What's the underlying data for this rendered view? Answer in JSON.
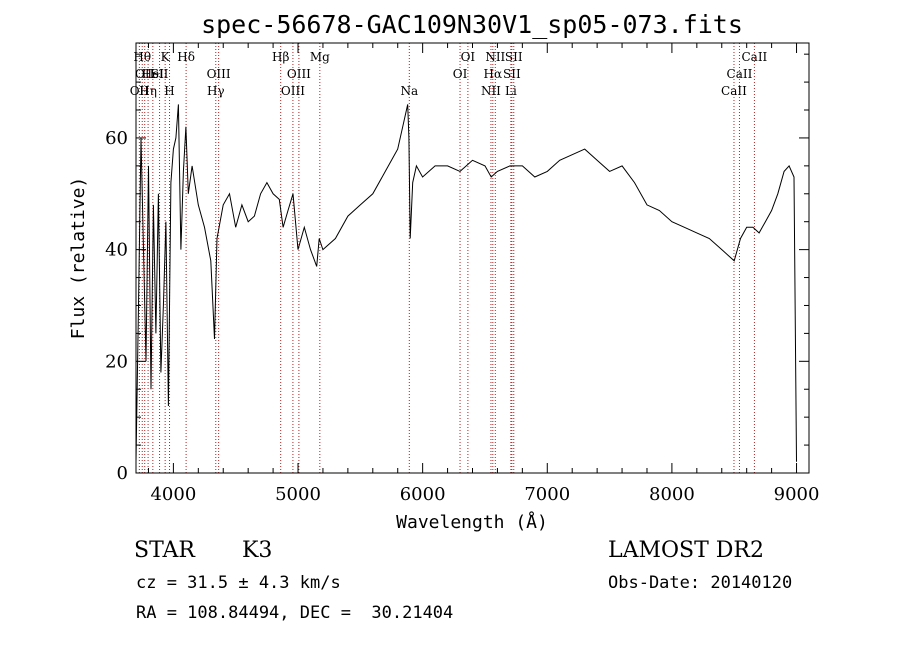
{
  "chart_data": {
    "type": "line",
    "title": "spec-56678-GAC109N30V1_sp05-073.fits",
    "xlabel": "Wavelength (Å)",
    "ylabel": "Flux (relative)",
    "xlim": [
      3700,
      9100
    ],
    "ylim": [
      0,
      77
    ],
    "xticks": [
      4000,
      5000,
      6000,
      7000,
      8000,
      9000
    ],
    "yticks": [
      0,
      20,
      40,
      60
    ],
    "grid": false,
    "series": [
      {
        "x": [
          3700,
          3720,
          3740,
          3760,
          3780,
          3800,
          3820,
          3840,
          3860,
          3880,
          3900,
          3920,
          3940,
          3960,
          3980,
          4000,
          4020,
          4040,
          4060,
          4080,
          4100,
          4120,
          4150,
          4200,
          4250,
          4300,
          4330,
          4350,
          4400,
          4450,
          4500,
          4550,
          4600,
          4650,
          4700,
          4750,
          4800,
          4850,
          4880,
          4920,
          4960,
          5000,
          5050,
          5100,
          5150,
          5170,
          5200,
          5300,
          5400,
          5500,
          5600,
          5700,
          5750,
          5800,
          5840,
          5860,
          5880,
          5890,
          5900,
          5920,
          5950,
          6000,
          6100,
          6200,
          6300,
          6400,
          6500,
          6550,
          6600,
          6700,
          6800,
          6900,
          7000,
          7100,
          7200,
          7300,
          7400,
          7500,
          7600,
          7700,
          7800,
          7900,
          8000,
          8100,
          8200,
          8300,
          8400,
          8450,
          8500,
          8550,
          8600,
          8650,
          8700,
          8750,
          8800,
          8850,
          8900,
          8940,
          8980,
          9000
        ],
        "values": [
          2,
          30,
          60,
          40,
          20,
          55,
          15,
          48,
          25,
          50,
          18,
          30,
          45,
          12,
          52,
          58,
          60,
          66,
          40,
          54,
          62,
          50,
          55,
          48,
          44,
          38,
          24,
          42,
          48,
          50,
          44,
          48,
          45,
          46,
          50,
          52,
          50,
          49,
          44,
          47,
          50,
          40,
          44,
          40,
          37,
          42,
          40,
          42,
          46,
          48,
          50,
          54,
          56,
          58,
          62,
          64,
          66,
          60,
          42,
          52,
          55,
          53,
          55,
          55,
          54,
          56,
          55,
          53,
          54,
          55,
          55,
          53,
          54,
          56,
          57,
          58,
          56,
          54,
          55,
          52,
          48,
          47,
          45,
          44,
          43,
          42,
          40,
          39,
          38,
          42,
          44,
          44,
          43,
          45,
          47,
          50,
          54,
          55,
          53,
          2
        ]
      }
    ],
    "lines": [
      {
        "x": 3727,
        "label": "OII",
        "row": 3
      },
      {
        "x": 3750,
        "label": "Hθ",
        "row": 1
      },
      {
        "x": 3770,
        "label": "OII",
        "row": 2
      },
      {
        "x": 3797,
        "label": "Hη",
        "row": 3
      },
      {
        "x": 3835,
        "label": "HeI",
        "row": 2
      },
      {
        "x": 3889,
        "label": "SII",
        "row": 2
      },
      {
        "x": 3934,
        "label": "K",
        "row": 1
      },
      {
        "x": 3969,
        "label": "H",
        "row": 3
      },
      {
        "x": 4102,
        "label": "Hδ",
        "row": 1
      },
      {
        "x": 4340,
        "label": "Hγ",
        "row": 3
      },
      {
        "x": 4363,
        "label": "OIII",
        "row": 2
      },
      {
        "x": 4861,
        "label": "Hβ",
        "row": 1
      },
      {
        "x": 4959,
        "label": "OIII",
        "row": 3
      },
      {
        "x": 5007,
        "label": "OIII",
        "row": 2
      },
      {
        "x": 5175,
        "label": "Mg",
        "row": 1
      },
      {
        "x": 5893,
        "label": "Na",
        "row": 3
      },
      {
        "x": 6300,
        "label": "OI",
        "row": 2
      },
      {
        "x": 6363,
        "label": "OI",
        "row": 1
      },
      {
        "x": 6548,
        "label": "NII",
        "row": 3
      },
      {
        "x": 6563,
        "label": "Hα",
        "row": 2
      },
      {
        "x": 6583,
        "label": "NII",
        "row": 1
      },
      {
        "x": 6708,
        "label": "Li",
        "row": 3
      },
      {
        "x": 6716,
        "label": "SII",
        "row": 2
      },
      {
        "x": 6731,
        "label": "SII",
        "row": 1
      },
      {
        "x": 8498,
        "label": "CaII",
        "row": 3
      },
      {
        "x": 8542,
        "label": "CaII",
        "row": 2
      },
      {
        "x": 8662,
        "label": "CaII",
        "row": 1
      }
    ]
  },
  "info": {
    "class_label": "STAR",
    "subclass": "K3",
    "cz": "cz = 31.5 ± 4.3 km/s",
    "coords": "RA = 108.84494, DEC =  30.21404",
    "survey": "LAMOST DR2",
    "obs_date": "Obs-Date: 20140120"
  }
}
